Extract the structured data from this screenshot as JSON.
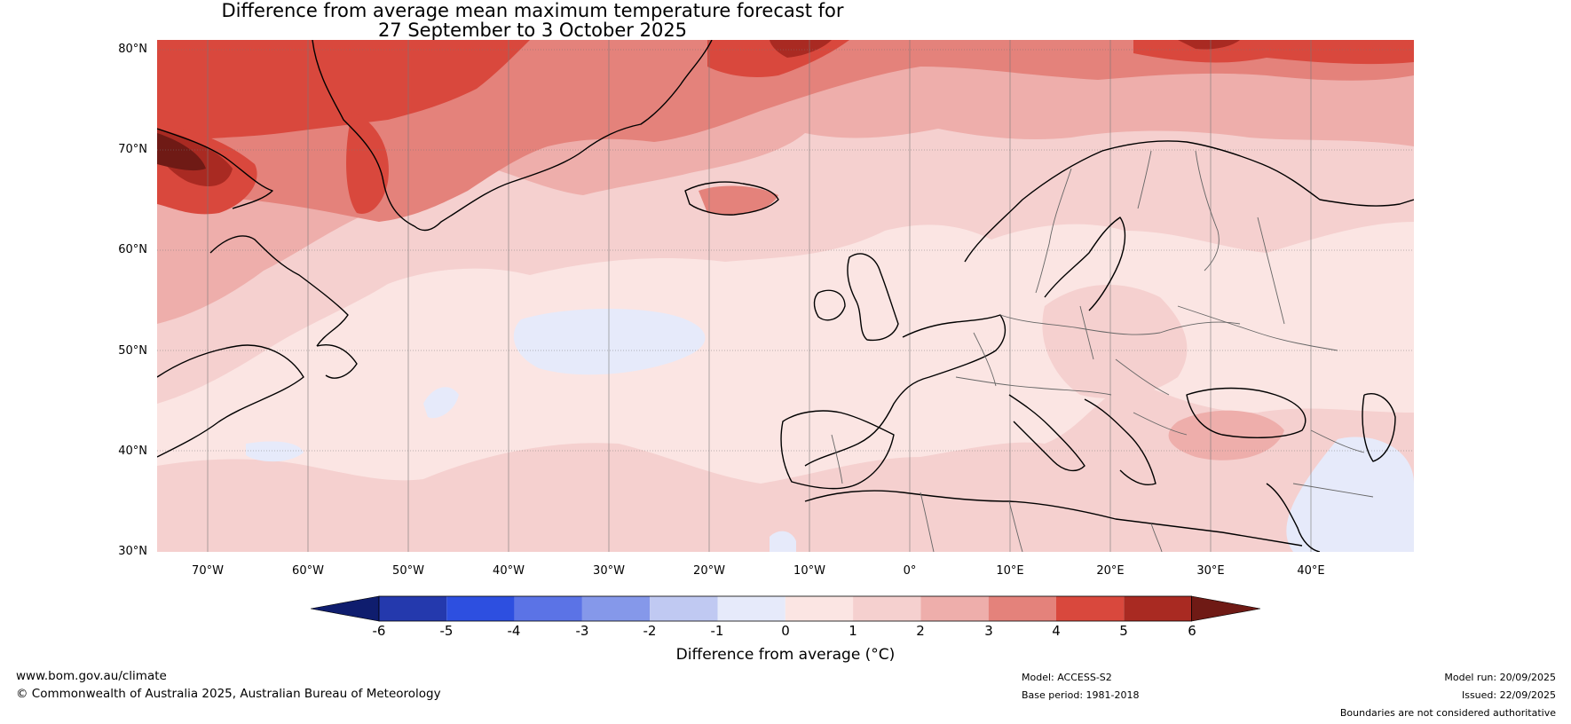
{
  "title": {
    "line1": "Difference from average mean maximum temperature forecast for",
    "line2": "27 September to 3 October 2025"
  },
  "axes": {
    "lat_labels": [
      "80°N",
      "70°N",
      "60°N",
      "50°N",
      "40°N",
      "30°N"
    ],
    "lon_labels": [
      "70°W",
      "60°W",
      "50°W",
      "40°W",
      "30°W",
      "20°W",
      "10°W",
      "0°",
      "10°E",
      "20°E",
      "30°E",
      "40°E"
    ],
    "lat_range": [
      30,
      81
    ],
    "lon_range": [
      -75,
      50
    ]
  },
  "colorbar": {
    "ticks": [
      "-6",
      "-5",
      "-4",
      "-3",
      "-2",
      "-1",
      "0",
      "1",
      "2",
      "3",
      "4",
      "5",
      "6"
    ],
    "colors": {
      "below_min": "#0f1d6e",
      "m6_m5": "#2439ad",
      "m5_m4": "#2d4fe0",
      "m4_m3": "#5b73e6",
      "m3_m2": "#8598ea",
      "m2_m1": "#c0c9f2",
      "m1_0": "#e6eafa",
      "0_1": "#fbe5e3",
      "1_2": "#f5d0cf",
      "2_3": "#eeaeab",
      "3_4": "#e4827b",
      "4_5": "#d9483d",
      "5_6": "#a92a22",
      "above_max": "#6f1a15"
    },
    "label": "Difference from average (°C)"
  },
  "footer": {
    "website": "www.bom.gov.au/climate",
    "copyright": "© Commonwealth of Australia 2025, Australian Bureau of Meteorology",
    "model": "Model: ACCESS-S2",
    "base_period": "Base period: 1981-2018",
    "model_run": "Model run: 20/09/2025",
    "issued": "Issued: 22/09/2025",
    "disclaimer": "Boundaries are not considered authoritative"
  }
}
